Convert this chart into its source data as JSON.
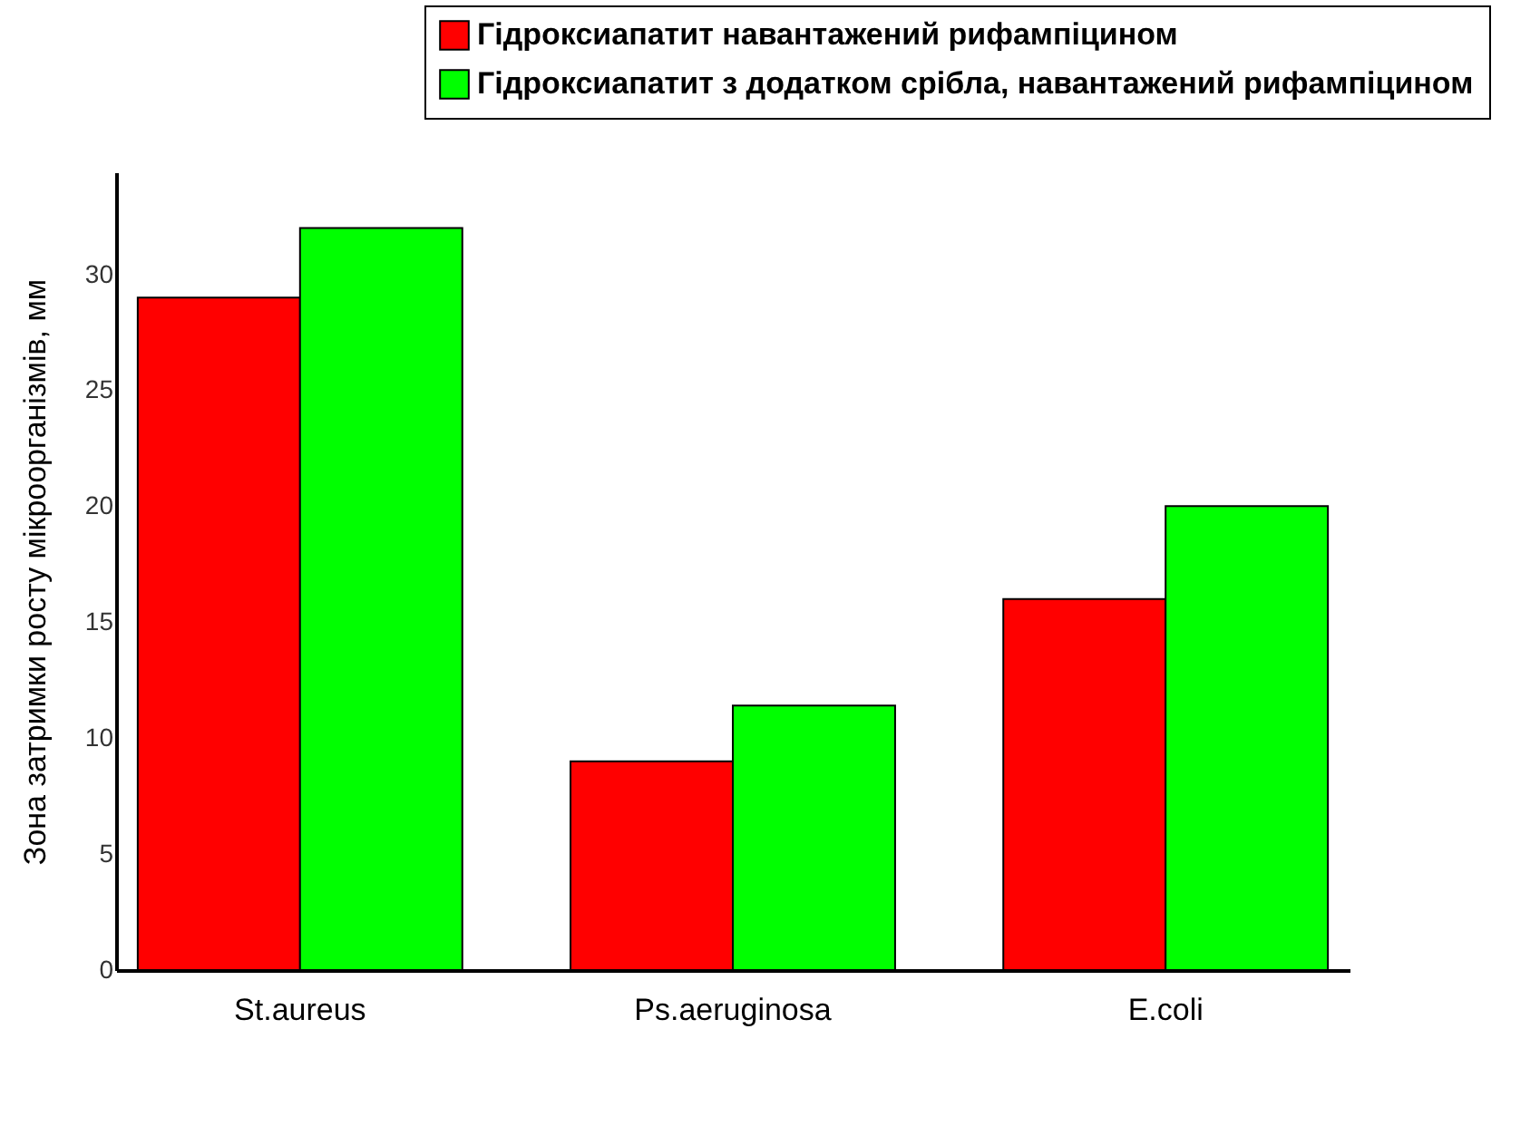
{
  "chart_data": {
    "type": "bar",
    "ylabel": "Зона затримки росту мікроорганізмів, мм",
    "categories": [
      "St.aureus",
      "Ps.aeruginosa",
      "E.coli"
    ],
    "series": [
      {
        "name": "Гідроксиапатит навантажений рифампіцином",
        "color": "#ff0000",
        "values": [
          29,
          9,
          16
        ]
      },
      {
        "name": "Гідроксиапатит з додатком срібла, навантажений рифампіцином",
        "color": "#00ff00",
        "values": [
          32,
          11.4,
          20
        ]
      }
    ],
    "ylim": [
      0,
      34.4
    ],
    "yticks": [
      0,
      5,
      10,
      15,
      20,
      25,
      30
    ],
    "grid": false,
    "legend": "top right"
  }
}
